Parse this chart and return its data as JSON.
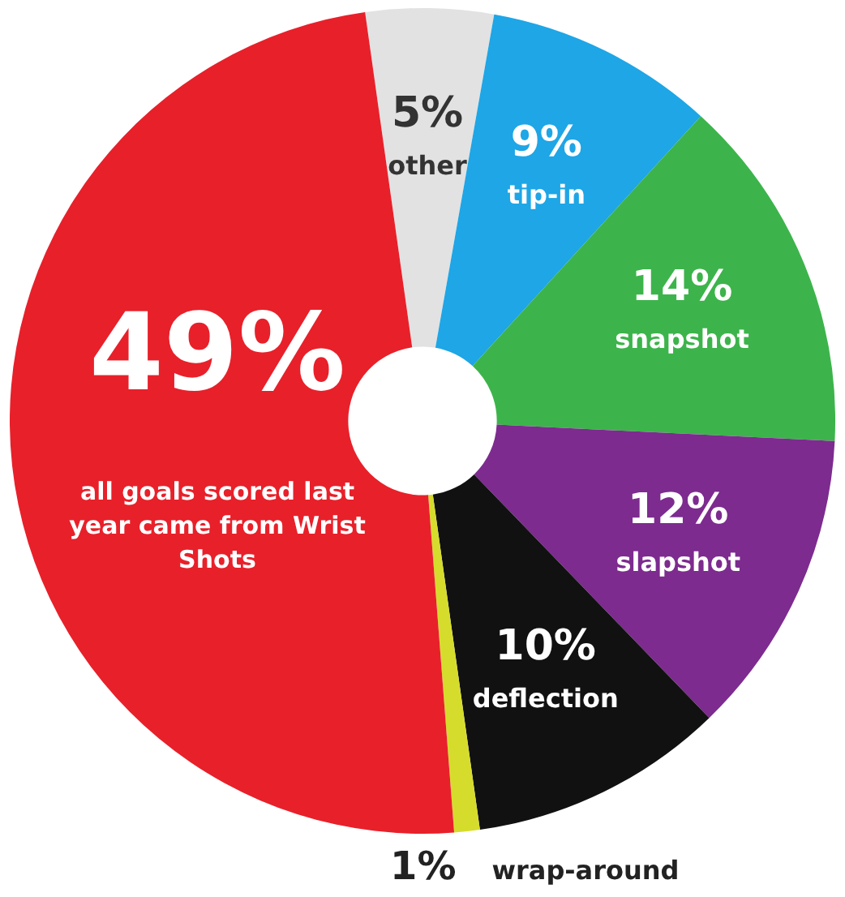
{
  "chart_data": {
    "type": "donut",
    "categories": [
      "other",
      "tip-in",
      "snapshot",
      "slapshot",
      "deflection",
      "wrap-around",
      "all goals scored last year came from Wrist Shots"
    ],
    "values": [
      5,
      9,
      14,
      12,
      10,
      1,
      49
    ],
    "colors": [
      "#e2e2e2",
      "#1ea6e6",
      "#3cb44b",
      "#7d2b8f",
      "#111111",
      "#d6dc2c",
      "#e8202a"
    ],
    "value_labels": [
      "5%",
      "9%",
      "14%",
      "12%",
      "10%",
      "1%",
      "49%"
    ],
    "legend": false
  }
}
